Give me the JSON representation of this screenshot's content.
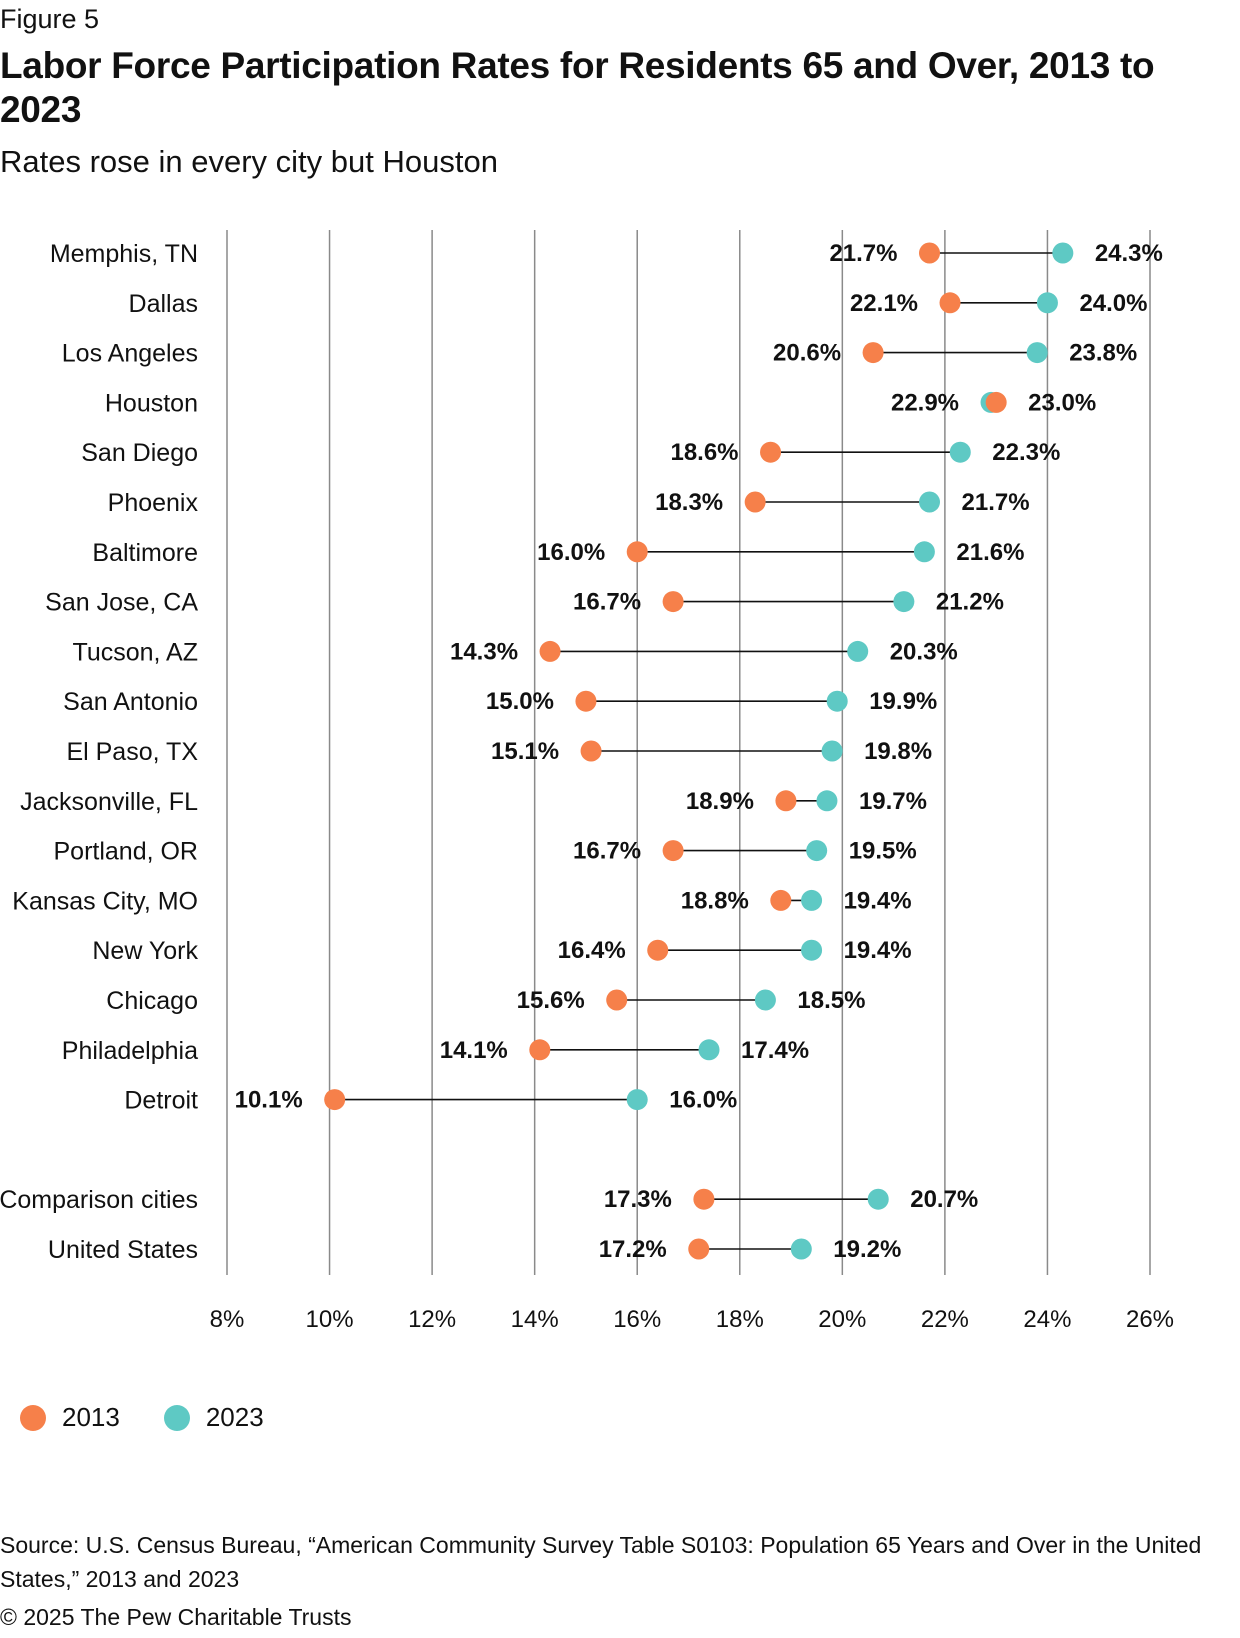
{
  "figure_label": "Figure 5",
  "title": "Labor Force Participation Rates for Residents 65 and Over, 2013 to 2023",
  "subtitle": "Rates rose in every city but Houston",
  "colors": {
    "y2013": "#F6804A",
    "y2023": "#5EC9C4",
    "grid": "#8a8a8a",
    "connector": "#111111"
  },
  "legend": [
    {
      "label": "2013",
      "color": "#F6804A"
    },
    {
      "label": "2023",
      "color": "#5EC9C4"
    }
  ],
  "chart_data": {
    "type": "dumbbell",
    "x_ticks": [
      "8%",
      "10%",
      "12%",
      "14%",
      "16%",
      "18%",
      "20%",
      "22%",
      "24%",
      "26%"
    ],
    "xlim": [
      8,
      26
    ],
    "rows": [
      {
        "label": "Memphis, TN",
        "v2013": 21.7,
        "v2023": 24.3,
        "l2013": "21.7%",
        "l2023": "24.3%"
      },
      {
        "label": "Dallas",
        "v2013": 22.1,
        "v2023": 24.0,
        "l2013": "22.1%",
        "l2023": "24.0%"
      },
      {
        "label": "Los Angeles",
        "v2013": 20.6,
        "v2023": 23.8,
        "l2013": "20.6%",
        "l2023": "23.8%"
      },
      {
        "label": "Houston",
        "v2013": 23.0,
        "v2023": 22.9,
        "l2013": "23.0%",
        "l2023": "22.9%"
      },
      {
        "label": "San Diego",
        "v2013": 18.6,
        "v2023": 22.3,
        "l2013": "18.6%",
        "l2023": "22.3%"
      },
      {
        "label": "Phoenix",
        "v2013": 18.3,
        "v2023": 21.7,
        "l2013": "18.3%",
        "l2023": "21.7%"
      },
      {
        "label": "Baltimore",
        "v2013": 16.0,
        "v2023": 21.6,
        "l2013": "16.0%",
        "l2023": "21.6%"
      },
      {
        "label": "San Jose, CA",
        "v2013": 16.7,
        "v2023": 21.2,
        "l2013": "16.7%",
        "l2023": "21.2%"
      },
      {
        "label": "Tucson, AZ",
        "v2013": 14.3,
        "v2023": 20.3,
        "l2013": "14.3%",
        "l2023": "20.3%"
      },
      {
        "label": "San Antonio",
        "v2013": 15.0,
        "v2023": 19.9,
        "l2013": "15.0%",
        "l2023": "19.9%"
      },
      {
        "label": "El Paso, TX",
        "v2013": 15.1,
        "v2023": 19.8,
        "l2013": "15.1%",
        "l2023": "19.8%"
      },
      {
        "label": "Jacksonville, FL",
        "v2013": 18.9,
        "v2023": 19.7,
        "l2013": "18.9%",
        "l2023": "19.7%"
      },
      {
        "label": "Portland, OR",
        "v2013": 16.7,
        "v2023": 19.5,
        "l2013": "16.7%",
        "l2023": "19.5%"
      },
      {
        "label": "Kansas City, MO",
        "v2013": 18.8,
        "v2023": 19.4,
        "l2013": "18.8%",
        "l2023": "19.4%"
      },
      {
        "label": "New York",
        "v2013": 16.4,
        "v2023": 19.4,
        "l2013": "16.4%",
        "l2023": "19.4%"
      },
      {
        "label": "Chicago",
        "v2013": 15.6,
        "v2023": 18.5,
        "l2013": "15.6%",
        "l2023": "18.5%"
      },
      {
        "label": "Philadelphia",
        "v2013": 14.1,
        "v2023": 17.4,
        "l2013": "14.1%",
        "l2023": "17.4%"
      },
      {
        "label": "Detroit",
        "v2013": 10.1,
        "v2023": 16.0,
        "l2013": "10.1%",
        "l2023": "16.0%"
      },
      {
        "label": "Comparison cities",
        "v2013": 17.3,
        "v2023": 20.7,
        "l2013": "17.3%",
        "l2023": "20.7%"
      },
      {
        "label": "United States",
        "v2013": 17.2,
        "v2023": 19.2,
        "l2013": "17.2%",
        "l2023": "19.2%"
      }
    ]
  },
  "source": "Source: U.S. Census Bureau, “American Community Survey Table S0103: Population 65 Years and Over in the United States,” 2013 and 2023",
  "copyright": "© 2025 The Pew Charitable Trusts"
}
